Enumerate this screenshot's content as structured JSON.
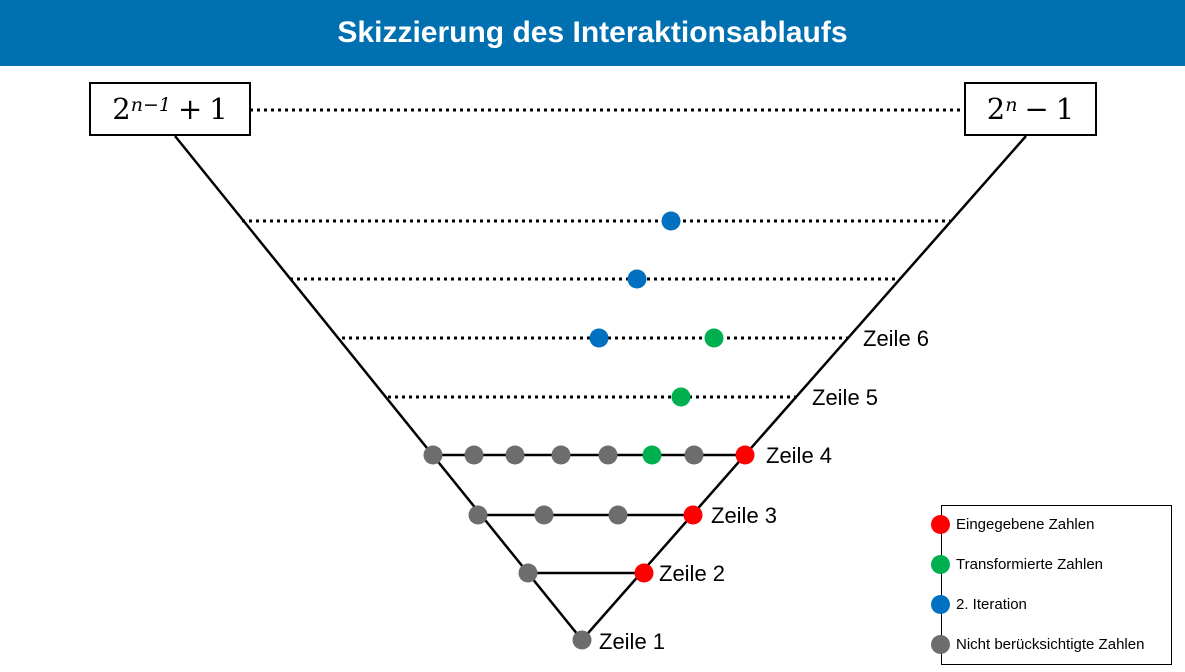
{
  "header": {
    "title": "Skizzierung des Interaktionsablaufs"
  },
  "math": {
    "left": {
      "base": "2",
      "exponent": "n−1",
      "operator": "+",
      "operand": "1"
    },
    "right": {
      "base": "2",
      "exponent": "n",
      "operator": "−",
      "operand": "1"
    }
  },
  "rows": [
    {
      "label": "Zeile 1"
    },
    {
      "label": "Zeile 2"
    },
    {
      "label": "Zeile 3"
    },
    {
      "label": "Zeile 4"
    },
    {
      "label": "Zeile 5"
    },
    {
      "label": "Zeile 6"
    }
  ],
  "legend": {
    "items": [
      {
        "label": "Eingegebene Zahlen",
        "color": "#ff0000"
      },
      {
        "label": "Transformierte Zahlen",
        "color": "#00b050"
      },
      {
        "label": "2. Iteration",
        "color": "#0070c0"
      },
      {
        "label": "Nicht berücksichtigte Zahlen",
        "color": "#6d6d6d"
      }
    ]
  },
  "colors": {
    "header_bg": "#0070b0",
    "input": "#ff0000",
    "transformed": "#00b050",
    "iteration2": "#0070c0",
    "ignored": "#6d6d6d"
  }
}
